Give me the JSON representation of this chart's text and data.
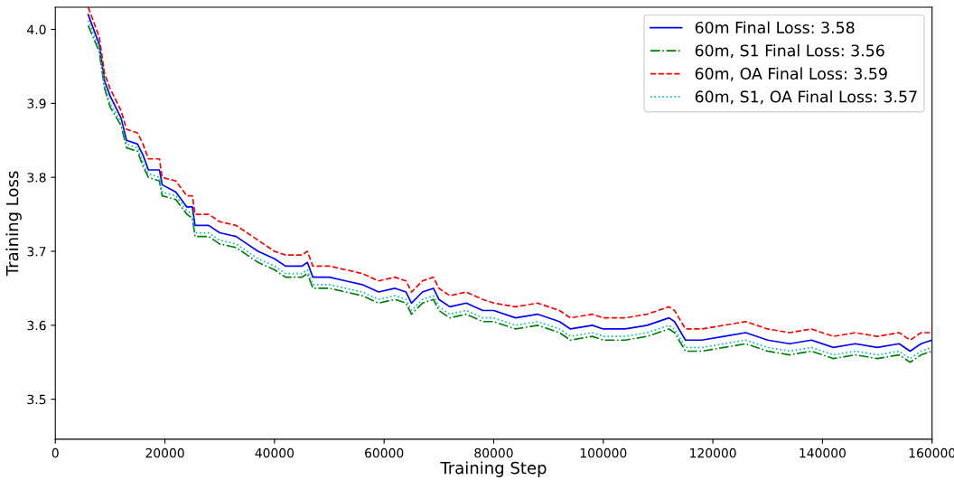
{
  "chart_data": {
    "type": "line",
    "xlabel": "Training Step",
    "ylabel": "Training Loss",
    "x": [
      6000,
      8000,
      9000,
      10000,
      12000,
      13000,
      15000,
      16000,
      17000,
      19000,
      19500,
      22000,
      24000,
      25000,
      25500,
      28000,
      30000,
      33000,
      35000,
      37000,
      40000,
      42000,
      45000,
      46000,
      47000,
      50000,
      53000,
      56000,
      59000,
      62000,
      64000,
      65000,
      67000,
      69000,
      70000,
      72000,
      75000,
      78000,
      80000,
      84000,
      88000,
      92000,
      94000,
      98000,
      100000,
      104000,
      108000,
      112000,
      113000,
      115000,
      118000,
      122000,
      126000,
      130000,
      134000,
      138000,
      142000,
      146000,
      150000,
      154000,
      156000,
      158000,
      160000
    ],
    "series": [
      {
        "name": "60m Final Loss: 3.58",
        "color": "#0000ff",
        "line_style": "solid",
        "values": [
          4.02,
          3.98,
          3.93,
          3.91,
          3.88,
          3.85,
          3.845,
          3.83,
          3.81,
          3.81,
          3.79,
          3.78,
          3.76,
          3.76,
          3.735,
          3.735,
          3.725,
          3.72,
          3.71,
          3.7,
          3.69,
          3.68,
          3.68,
          3.685,
          3.665,
          3.665,
          3.66,
          3.655,
          3.645,
          3.65,
          3.645,
          3.63,
          3.645,
          3.65,
          3.635,
          3.625,
          3.63,
          3.62,
          3.62,
          3.61,
          3.615,
          3.605,
          3.595,
          3.6,
          3.595,
          3.595,
          3.6,
          3.61,
          3.605,
          3.58,
          3.58,
          3.585,
          3.59,
          3.58,
          3.575,
          3.58,
          3.57,
          3.575,
          3.57,
          3.575,
          3.565,
          3.575,
          3.58
        ]
      },
      {
        "name": "60m, S1 Final Loss: 3.56",
        "color": "#008000",
        "line_style": "dashdot",
        "values": [
          4.005,
          3.97,
          3.92,
          3.895,
          3.87,
          3.84,
          3.835,
          3.815,
          3.8,
          3.795,
          3.775,
          3.77,
          3.75,
          3.745,
          3.72,
          3.72,
          3.71,
          3.705,
          3.695,
          3.685,
          3.675,
          3.665,
          3.665,
          3.67,
          3.65,
          3.65,
          3.645,
          3.64,
          3.63,
          3.635,
          3.63,
          3.615,
          3.63,
          3.635,
          3.62,
          3.61,
          3.615,
          3.605,
          3.605,
          3.595,
          3.6,
          3.59,
          3.58,
          3.585,
          3.58,
          3.58,
          3.585,
          3.595,
          3.59,
          3.565,
          3.565,
          3.57,
          3.575,
          3.565,
          3.56,
          3.565,
          3.555,
          3.56,
          3.555,
          3.56,
          3.55,
          3.56,
          3.565
        ]
      },
      {
        "name": "60m, OA Final Loss: 3.59",
        "color": "#ff0000",
        "line_style": "dashed",
        "values": [
          4.03,
          3.99,
          3.94,
          3.92,
          3.89,
          3.865,
          3.86,
          3.845,
          3.825,
          3.825,
          3.8,
          3.795,
          3.775,
          3.775,
          3.75,
          3.75,
          3.74,
          3.735,
          3.725,
          3.715,
          3.7,
          3.695,
          3.695,
          3.7,
          3.68,
          3.68,
          3.675,
          3.67,
          3.66,
          3.665,
          3.66,
          3.645,
          3.66,
          3.665,
          3.65,
          3.64,
          3.645,
          3.635,
          3.63,
          3.625,
          3.63,
          3.62,
          3.61,
          3.615,
          3.61,
          3.61,
          3.615,
          3.625,
          3.62,
          3.595,
          3.595,
          3.6,
          3.605,
          3.595,
          3.59,
          3.595,
          3.585,
          3.59,
          3.585,
          3.59,
          3.58,
          3.59,
          3.59
        ]
      },
      {
        "name": "60m, S1, OA Final Loss: 3.57",
        "color": "#00bfbf",
        "line_style": "dotted",
        "values": [
          4.012,
          3.975,
          3.925,
          3.9,
          3.875,
          3.845,
          3.84,
          3.82,
          3.805,
          3.8,
          3.78,
          3.775,
          3.755,
          3.75,
          3.725,
          3.725,
          3.715,
          3.71,
          3.7,
          3.69,
          3.68,
          3.67,
          3.67,
          3.675,
          3.655,
          3.655,
          3.65,
          3.645,
          3.635,
          3.64,
          3.635,
          3.62,
          3.635,
          3.64,
          3.625,
          3.615,
          3.62,
          3.61,
          3.61,
          3.6,
          3.605,
          3.595,
          3.585,
          3.59,
          3.585,
          3.585,
          3.59,
          3.6,
          3.595,
          3.57,
          3.57,
          3.575,
          3.58,
          3.57,
          3.565,
          3.57,
          3.56,
          3.565,
          3.56,
          3.565,
          3.555,
          3.565,
          3.57
        ]
      }
    ],
    "xlim": [
      0,
      160000
    ],
    "xticks": [
      0,
      20000,
      40000,
      60000,
      80000,
      100000,
      120000,
      140000,
      160000
    ],
    "ylim": [
      3.446,
      4.03
    ],
    "yticks": [
      {
        "value": 3.5,
        "label": "3.5"
      },
      {
        "value": 3.6,
        "label": "3.6"
      },
      {
        "value": 3.7,
        "label": "3.7"
      },
      {
        "value": 3.8,
        "label": "3.8"
      },
      {
        "value": 3.9,
        "label": "3.9"
      },
      {
        "value": 4.0,
        "label": "4.0"
      }
    ],
    "grid": false,
    "legend": "top right"
  }
}
